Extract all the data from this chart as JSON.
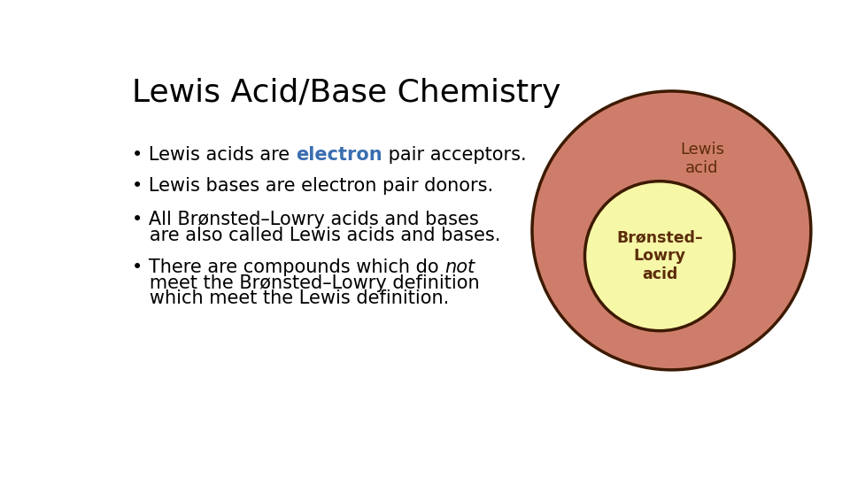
{
  "title": "Lewis Acid/Base Chemistry",
  "title_fontsize": 26,
  "title_color": "#000000",
  "background_color": "#ffffff",
  "bullet_lines": [
    {
      "text": "• Lewis acids are ",
      "style": "normal",
      "color": "#000000",
      "cont": [
        {
          "text": "electron",
          "style": "bold",
          "color": "#3a6eb0"
        },
        {
          "text": " pair acceptors.",
          "style": "normal",
          "color": "#000000"
        }
      ]
    },
    {
      "text": "• Lewis bases are electron pair donors.",
      "style": "normal",
      "color": "#000000",
      "cont": []
    },
    {
      "text": "• All Brønsted–Lowry acids and bases",
      "style": "normal",
      "color": "#000000",
      "cont": []
    },
    {
      "text": "   are also called Lewis acids and bases.",
      "style": "normal",
      "color": "#000000",
      "cont": []
    },
    {
      "text": "• There are compounds which do ",
      "style": "normal",
      "color": "#000000",
      "cont": [
        {
          "text": "not",
          "style": "italic",
          "color": "#000000"
        },
        {
          "text": "",
          "style": "normal",
          "color": "#000000"
        }
      ]
    },
    {
      "text": "   meet the Brønsted–Lowry definition",
      "style": "normal",
      "color": "#000000",
      "cont": []
    },
    {
      "text": "   which meet the Lewis definition.",
      "style": "normal",
      "color": "#000000",
      "cont": []
    }
  ],
  "bullet_fontsize": 15,
  "outer_circle_color": "#cf7d6b",
  "outer_circle_edge": "#3d1a00",
  "inner_circle_color": "#f7f7a8",
  "inner_circle_edge": "#3d1a00",
  "lewis_label": "Lewis\nacid",
  "lewis_label_color": "#5c2d0a",
  "lewis_label_fontsize": 13,
  "bronsted_label": "Brønsted–\nLowry\nacid",
  "bronsted_label_color": "#5c2d0a",
  "bronsted_label_fontsize": 12.5
}
